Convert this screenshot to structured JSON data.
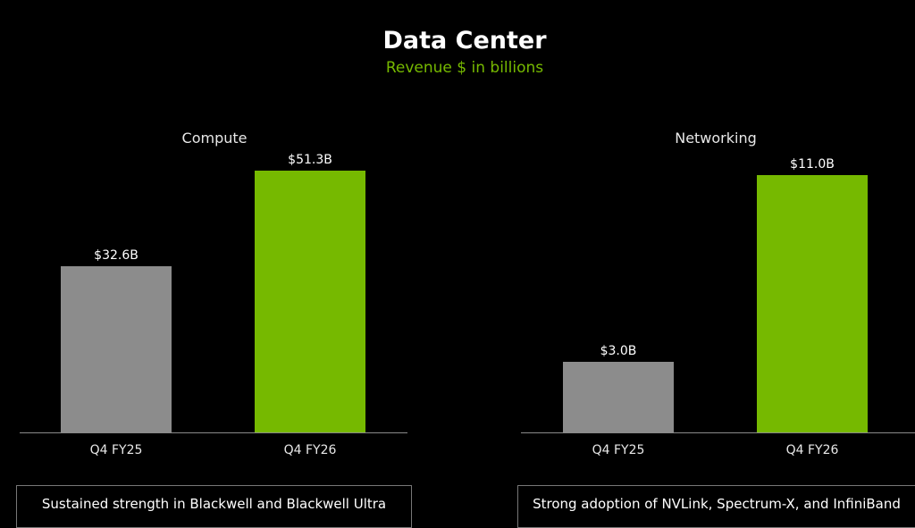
{
  "title": "Data Center",
  "subtitle": "Revenue $ in billions",
  "colors": {
    "prior": "#8c8c8c",
    "current": "#76b900",
    "subtitle": "#76b900"
  },
  "chart_data": [
    {
      "type": "bar",
      "title": "Compute",
      "categories": [
        "Q4 FY25",
        "Q4 FY26"
      ],
      "values": [
        32.6,
        51.3
      ],
      "value_labels": [
        "$32.6B",
        "$51.3B"
      ],
      "caption": "Sustained strength in Blackwell and Blackwell Ultra"
    },
    {
      "type": "bar",
      "title": "Networking",
      "categories": [
        "Q4 FY25",
        "Q4 FY26"
      ],
      "values": [
        3.0,
        11.0
      ],
      "value_labels": [
        "$3.0B",
        "$11.0B"
      ],
      "caption": "Strong adoption of NVLink, Spectrum-X, and InfiniBand"
    }
  ]
}
